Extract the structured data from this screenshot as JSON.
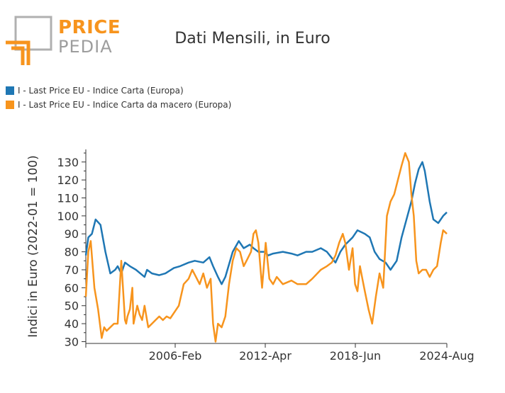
{
  "logo": {
    "line1": "PRICE",
    "line2": "PEDIA"
  },
  "colors": {
    "orange": "#f7941d",
    "blue": "#1f77b4",
    "grey": "#9d9d9d"
  },
  "chart_data": {
    "type": "line",
    "title": "Dati Mensili, in Euro",
    "xlabel": "",
    "ylabel": "Indici in Euro (2022-01 = 100)",
    "xlim": [
      "2000-01",
      "2024-08"
    ],
    "ylim": [
      29,
      137
    ],
    "yticks": [
      30,
      40,
      50,
      60,
      70,
      80,
      90,
      100,
      110,
      120,
      130
    ],
    "xticks": [
      "2006-Feb",
      "2012-Apr",
      "2018-Jun",
      "2024-Aug"
    ],
    "grid": false,
    "legend_position": "top-left",
    "series": [
      {
        "name": "I - Last Price EU - Indice Carta (Europa)",
        "color": "#1f77b4",
        "x": [
          "2000-01",
          "2000-03",
          "2000-06",
          "2000-09",
          "2001-01",
          "2001-05",
          "2001-09",
          "2002-01",
          "2002-03",
          "2002-06",
          "2002-09",
          "2003-01",
          "2003-06",
          "2004-01",
          "2004-03",
          "2004-07",
          "2005-01",
          "2005-06",
          "2006-01",
          "2006-06",
          "2007-01",
          "2007-06",
          "2008-01",
          "2008-06",
          "2008-09",
          "2009-01",
          "2009-04",
          "2009-07",
          "2010-01",
          "2010-06",
          "2010-10",
          "2011-03",
          "2011-06",
          "2011-10",
          "2012-03",
          "2012-06",
          "2012-10",
          "2013-06",
          "2014-01",
          "2014-06",
          "2015-01",
          "2015-06",
          "2016-01",
          "2016-06",
          "2017-01",
          "2017-05",
          "2017-09",
          "2018-03",
          "2018-07",
          "2019-01",
          "2019-05",
          "2019-09",
          "2020-01",
          "2020-06",
          "2020-10",
          "2021-03",
          "2021-07",
          "2021-11",
          "2022-03",
          "2022-06",
          "2022-09",
          "2022-12",
          "2023-02",
          "2023-06",
          "2023-09",
          "2024-01",
          "2024-05",
          "2024-08"
        ],
        "y": [
          78,
          88,
          90,
          98,
          95,
          80,
          68,
          70,
          72,
          68,
          74,
          72,
          70,
          66,
          70,
          68,
          67,
          68,
          71,
          72,
          74,
          75,
          74,
          77,
          72,
          66,
          62,
          66,
          80,
          86,
          82,
          84,
          82,
          80,
          80,
          78,
          79,
          80,
          79,
          78,
          80,
          80,
          82,
          80,
          74,
          80,
          84,
          88,
          92,
          90,
          88,
          80,
          76,
          74,
          70,
          75,
          88,
          98,
          108,
          118,
          126,
          130,
          125,
          108,
          98,
          96,
          100,
          102
        ]
      },
      {
        "name": "I - Last Price EU - Indice Carta da macero (Europa)",
        "color": "#f7941d",
        "x": [
          "2000-01",
          "2000-03",
          "2000-05",
          "2000-08",
          "2000-11",
          "2001-02",
          "2001-04",
          "2001-06",
          "2001-09",
          "2001-12",
          "2002-03",
          "2002-06",
          "2002-09",
          "2002-10",
          "2002-11",
          "2003-01",
          "2003-03",
          "2003-04",
          "2003-07",
          "2003-09",
          "2003-11",
          "2004-01",
          "2004-04",
          "2004-07",
          "2004-10",
          "2005-01",
          "2005-04",
          "2005-07",
          "2005-10",
          "2006-01",
          "2006-05",
          "2006-09",
          "2007-01",
          "2007-04",
          "2007-07",
          "2007-10",
          "2008-01",
          "2008-04",
          "2008-07",
          "2008-09",
          "2008-11",
          "2009-01",
          "2009-04",
          "2009-07",
          "2009-10",
          "2010-01",
          "2010-04",
          "2010-07",
          "2010-10",
          "2011-01",
          "2011-04",
          "2011-06",
          "2011-08",
          "2011-10",
          "2012-01",
          "2012-04",
          "2012-07",
          "2012-10",
          "2013-01",
          "2013-06",
          "2014-01",
          "2014-06",
          "2015-01",
          "2015-06",
          "2016-01",
          "2016-06",
          "2016-10",
          "2017-01",
          "2017-04",
          "2017-07",
          "2017-09",
          "2017-12",
          "2018-03",
          "2018-05",
          "2018-07",
          "2018-09",
          "2018-11",
          "2019-01",
          "2019-04",
          "2019-07",
          "2019-10",
          "2020-01",
          "2020-04",
          "2020-07",
          "2020-10",
          "2021-01",
          "2021-04",
          "2021-07",
          "2021-10",
          "2022-01",
          "2022-03",
          "2022-05",
          "2022-07",
          "2022-09",
          "2022-12",
          "2023-03",
          "2023-06",
          "2023-09",
          "2023-12",
          "2024-03",
          "2024-05",
          "2024-08"
        ],
        "y": [
          55,
          80,
          86,
          60,
          48,
          32,
          38,
          36,
          38,
          40,
          40,
          75,
          42,
          40,
          44,
          48,
          60,
          40,
          50,
          45,
          42,
          50,
          38,
          40,
          42,
          44,
          42,
          44,
          43,
          46,
          50,
          62,
          65,
          70,
          66,
          62,
          68,
          60,
          65,
          40,
          30,
          40,
          38,
          44,
          62,
          75,
          82,
          80,
          72,
          76,
          80,
          90,
          92,
          85,
          60,
          85,
          65,
          62,
          66,
          62,
          64,
          62,
          62,
          65,
          70,
          72,
          74,
          78,
          85,
          90,
          85,
          70,
          82,
          62,
          58,
          72,
          65,
          58,
          48,
          40,
          55,
          68,
          60,
          100,
          108,
          112,
          120,
          128,
          135,
          130,
          112,
          100,
          75,
          68,
          70,
          70,
          66,
          70,
          72,
          85,
          92,
          90
        ]
      }
    ]
  }
}
